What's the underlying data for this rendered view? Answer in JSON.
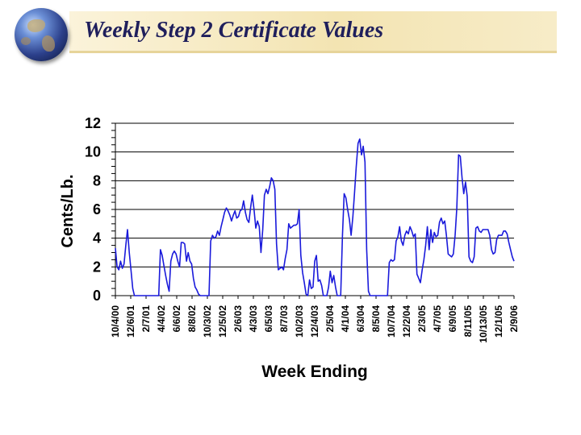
{
  "slide": {
    "title": "Weekly Step 2 Certificate Values"
  },
  "colors": {
    "line": "#1a1adb",
    "grid": "#000000",
    "banner": "#f3e4b2",
    "title": "#1f1f5c"
  },
  "icons": {
    "logo": "globe-icon"
  },
  "chart_data": {
    "type": "line",
    "title": "",
    "xlabel": "Week Ending",
    "ylabel": "Cents/Lb.",
    "ylim": [
      0,
      12
    ],
    "yticks": [
      0,
      2,
      4,
      6,
      8,
      10,
      12
    ],
    "grid": "horizontal",
    "legend": "none",
    "x_tick_labels": [
      "10/4/00",
      "12/6/01",
      "2/7/01",
      "4/4/02",
      "6/6/02",
      "8/8/02",
      "10/3/02",
      "12/5/02",
      "2/6/03",
      "4/3/03",
      "6/5/03",
      "8/7/03",
      "10/2/03",
      "12/4/03",
      "2/5/04",
      "4/1/04",
      "6/3/04",
      "8/5/04",
      "10/7/04",
      "12/2/04",
      "2/3/05",
      "4/7/05",
      "6/9/05",
      "8/11/05",
      "10/13/05",
      "12/1/05",
      "2/9/06"
    ],
    "series": [
      {
        "values": [
          3.3,
          2.0,
          1.8,
          2.4,
          1.9,
          2.2,
          3.5,
          4.6,
          3.0,
          1.8,
          0.5,
          0.0,
          0.0,
          0.0,
          0.0,
          0.0,
          0.0,
          0.0,
          0.0,
          0.0,
          0.0,
          0.0,
          0.0,
          0.0,
          0.0,
          0.0,
          3.2,
          2.8,
          2.1,
          1.4,
          0.8,
          0.3,
          2.4,
          2.9,
          3.1,
          2.9,
          2.4,
          2.0,
          3.7,
          3.7,
          3.6,
          2.4,
          3.0,
          2.4,
          2.2,
          1.2,
          0.6,
          0.4,
          0.1,
          0.0,
          0.0,
          0.0,
          0.0,
          0.0,
          0.0,
          3.8,
          4.2,
          4.0,
          4.1,
          4.5,
          4.2,
          4.8,
          5.3,
          5.8,
          6.1,
          5.9,
          5.6,
          5.2,
          5.6,
          5.9,
          5.4,
          5.5,
          5.9,
          6.0,
          6.6,
          5.8,
          5.3,
          5.1,
          6.1,
          7.0,
          6.0,
          4.7,
          5.2,
          4.8,
          3.0,
          4.6,
          7.0,
          7.4,
          7.1,
          7.6,
          8.2,
          8.0,
          7.4,
          3.6,
          1.8,
          1.9,
          2.0,
          1.8,
          2.6,
          3.2,
          5.0,
          4.7,
          4.8,
          4.9,
          4.9,
          5.0,
          6.0,
          2.8,
          1.6,
          0.9,
          0.1,
          0.0,
          1.1,
          0.5,
          0.6,
          2.4,
          2.8,
          1.0,
          1.1,
          0.7,
          0.0,
          0.0,
          0.0,
          0.6,
          1.7,
          0.9,
          1.4,
          0.6,
          0.0,
          0.0,
          0.0,
          4.2,
          7.1,
          6.8,
          6.0,
          5.3,
          4.2,
          5.5,
          7.2,
          9.0,
          10.6,
          10.9,
          9.8,
          10.4,
          9.3,
          3.2,
          0.3,
          0.0,
          0.0,
          0.0,
          0.0,
          0.0,
          0.0,
          0.0,
          0.0,
          0.0,
          0.0,
          0.0,
          2.3,
          2.5,
          2.4,
          2.5,
          3.8,
          4.1,
          4.8,
          3.8,
          3.5,
          4.2,
          4.5,
          4.3,
          4.8,
          4.5,
          4.1,
          4.3,
          1.5,
          1.2,
          0.9,
          1.8,
          2.5,
          3.5,
          4.8,
          3.2,
          4.6,
          3.7,
          4.4,
          4.1,
          4.2,
          5.1,
          5.4,
          5.0,
          5.2,
          4.2,
          2.9,
          2.8,
          2.7,
          2.9,
          4.2,
          6.1,
          9.8,
          9.7,
          8.2,
          7.1,
          7.9,
          6.9,
          2.7,
          2.4,
          2.3,
          2.7,
          4.7,
          4.8,
          4.5,
          4.4,
          4.6,
          4.6,
          4.6,
          4.6,
          4.2,
          3.2,
          2.9,
          3.0,
          3.9,
          4.2,
          4.2,
          4.2,
          4.5,
          4.5,
          4.3,
          3.7,
          3.2,
          2.7,
          2.4
        ]
      }
    ]
  }
}
